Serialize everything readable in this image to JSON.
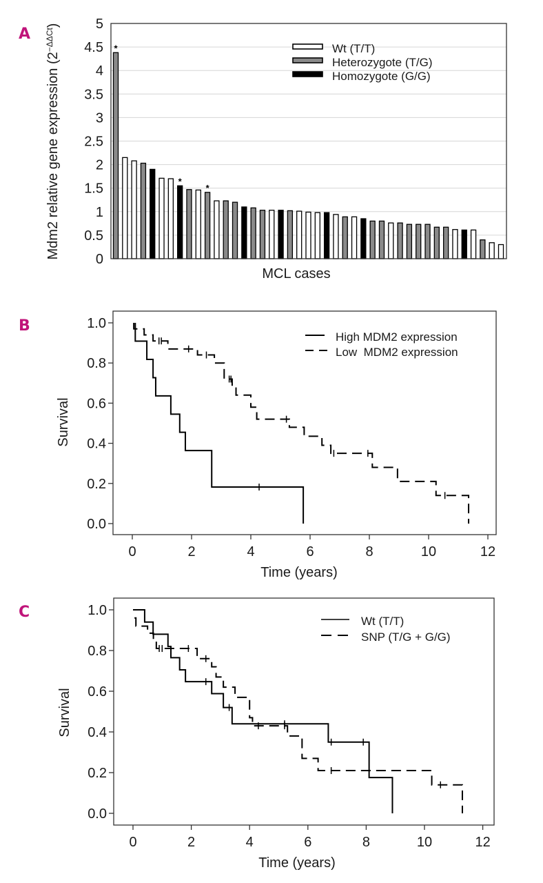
{
  "chart_data": [
    {
      "panel": "A",
      "type": "bar",
      "xlabel": "MCL cases",
      "ylabel": "Mdm2 relative gene expression (2",
      "ylabel_sup": "−ΔΔCt",
      "ylabel_close": ")",
      "ylim": [
        0,
        5
      ],
      "yticks": [
        "0",
        "0.5",
        "1",
        "1.5",
        "2",
        "2.5",
        "3",
        "3.5",
        "4",
        "4.5",
        "5"
      ],
      "grid": true,
      "legend_position": "top-right",
      "legend": [
        {
          "key": "wt",
          "label": "Wt (T/T)",
          "fill": "#ffffff"
        },
        {
          "key": "het",
          "label": "Heterozygote (T/G)",
          "fill": "#8a8a8a"
        },
        {
          "key": "hom",
          "label": "Homozygote (G/G)",
          "fill": "#000000"
        }
      ],
      "annotation_marker": "*",
      "bars": [
        {
          "genotype": "het",
          "value": 4.38,
          "star": true
        },
        {
          "genotype": "wt",
          "value": 2.15
        },
        {
          "genotype": "wt",
          "value": 2.08
        },
        {
          "genotype": "het",
          "value": 2.03
        },
        {
          "genotype": "hom",
          "value": 1.9
        },
        {
          "genotype": "wt",
          "value": 1.71
        },
        {
          "genotype": "wt",
          "value": 1.7
        },
        {
          "genotype": "hom",
          "value": 1.55,
          "star": true
        },
        {
          "genotype": "het",
          "value": 1.47
        },
        {
          "genotype": "wt",
          "value": 1.46
        },
        {
          "genotype": "het",
          "value": 1.41,
          "star": true
        },
        {
          "genotype": "wt",
          "value": 1.23
        },
        {
          "genotype": "het",
          "value": 1.23
        },
        {
          "genotype": "het",
          "value": 1.2
        },
        {
          "genotype": "hom",
          "value": 1.1
        },
        {
          "genotype": "het",
          "value": 1.08
        },
        {
          "genotype": "het",
          "value": 1.03
        },
        {
          "genotype": "wt",
          "value": 1.03
        },
        {
          "genotype": "hom",
          "value": 1.03
        },
        {
          "genotype": "het",
          "value": 1.02
        },
        {
          "genotype": "wt",
          "value": 1.01
        },
        {
          "genotype": "wt",
          "value": 0.99
        },
        {
          "genotype": "wt",
          "value": 0.98
        },
        {
          "genotype": "hom",
          "value": 0.98
        },
        {
          "genotype": "wt",
          "value": 0.94
        },
        {
          "genotype": "het",
          "value": 0.89
        },
        {
          "genotype": "wt",
          "value": 0.89
        },
        {
          "genotype": "hom",
          "value": 0.85
        },
        {
          "genotype": "het",
          "value": 0.8
        },
        {
          "genotype": "het",
          "value": 0.8
        },
        {
          "genotype": "wt",
          "value": 0.76
        },
        {
          "genotype": "het",
          "value": 0.76
        },
        {
          "genotype": "het",
          "value": 0.73
        },
        {
          "genotype": "het",
          "value": 0.73
        },
        {
          "genotype": "het",
          "value": 0.73
        },
        {
          "genotype": "het",
          "value": 0.67
        },
        {
          "genotype": "het",
          "value": 0.67
        },
        {
          "genotype": "wt",
          "value": 0.62
        },
        {
          "genotype": "hom",
          "value": 0.61
        },
        {
          "genotype": "wt",
          "value": 0.61
        },
        {
          "genotype": "het",
          "value": 0.4
        },
        {
          "genotype": "wt",
          "value": 0.34
        },
        {
          "genotype": "wt",
          "value": 0.3
        }
      ]
    },
    {
      "panel": "B",
      "type": "line",
      "subtype": "kaplan-meier",
      "xlabel": "Time (years)",
      "ylabel": "Survival",
      "xlim": [
        -0.6,
        12.6
      ],
      "ylim": [
        -0.06,
        1.06
      ],
      "xticks": [
        "0",
        "2",
        "4",
        "6",
        "8",
        "10",
        "12"
      ],
      "yticks": [
        "0.0",
        "0.2",
        "0.4",
        "0.6",
        "0.8",
        "1.0"
      ],
      "grid": false,
      "legend_position": "top-right",
      "series": [
        {
          "name": "High MDM2 expression",
          "style": "solid",
          "steps": [
            [
              0.1,
              1.0
            ],
            [
              0.1,
              0.909
            ],
            [
              0.49,
              0.818
            ],
            [
              0.7,
              0.727
            ],
            [
              0.79,
              0.636
            ],
            [
              1.3,
              0.545
            ],
            [
              1.6,
              0.455
            ],
            [
              1.79,
              0.364
            ],
            [
              2.68,
              0.182
            ],
            [
              5.77,
              0.0
            ]
          ],
          "censored": [
            [
              4.28,
              0.182
            ]
          ]
        },
        {
          "name": "Low  MDM2 expression",
          "style": "dashed",
          "steps": [
            [
              0.05,
              1.0
            ],
            [
              0.05,
              0.97
            ],
            [
              0.4,
              0.94
            ],
            [
              0.7,
              0.91
            ],
            [
              1.2,
              0.87
            ],
            [
              2.2,
              0.84
            ],
            [
              2.77,
              0.8
            ],
            [
              3.1,
              0.72
            ],
            [
              3.37,
              0.69
            ],
            [
              3.5,
              0.64
            ],
            [
              4.0,
              0.58
            ],
            [
              4.2,
              0.52
            ],
            [
              5.3,
              0.48
            ],
            [
              5.8,
              0.435
            ],
            [
              6.4,
              0.39
            ],
            [
              6.7,
              0.35
            ],
            [
              8.1,
              0.28
            ],
            [
              8.95,
              0.21
            ],
            [
              10.25,
              0.14
            ],
            [
              11.35,
              0.0
            ]
          ],
          "censored": [
            [
              0.9,
              0.91
            ],
            [
              0.98,
              0.91
            ],
            [
              1.9,
              0.87
            ],
            [
              2.5,
              0.84
            ],
            [
              3.27,
              0.72
            ],
            [
              3.33,
              0.72
            ],
            [
              5.2,
              0.52
            ],
            [
              6.8,
              0.35
            ],
            [
              7.95,
              0.35
            ],
            [
              10.55,
              0.14
            ]
          ]
        }
      ]
    },
    {
      "panel": "C",
      "type": "line",
      "subtype": "kaplan-meier",
      "xlabel": "Time (years)",
      "ylabel": "Survival",
      "xlim": [
        -0.6,
        12.6
      ],
      "ylim": [
        -0.06,
        1.06
      ],
      "xticks": [
        "0",
        "2",
        "4",
        "6",
        "8",
        "10",
        "12"
      ],
      "yticks": [
        "0.0",
        "0.2",
        "0.4",
        "0.6",
        "0.8",
        "1.0"
      ],
      "grid": false,
      "legend_position": "top-right",
      "series": [
        {
          "name": "Wt (T/T)",
          "style": "solid",
          "steps": [
            [
              0.0,
              1.0
            ],
            [
              0.4,
              0.94
            ],
            [
              0.69,
              0.88
            ],
            [
              1.2,
              0.82
            ],
            [
              1.3,
              0.765
            ],
            [
              1.6,
              0.705
            ],
            [
              1.8,
              0.647
            ],
            [
              2.7,
              0.588
            ],
            [
              3.1,
              0.52
            ],
            [
              3.4,
              0.44
            ],
            [
              6.7,
              0.35
            ],
            [
              8.1,
              0.176
            ],
            [
              8.9,
              0.0
            ]
          ],
          "censored": [
            [
              2.5,
              0.647
            ],
            [
              3.3,
              0.52
            ],
            [
              5.2,
              0.44
            ],
            [
              6.8,
              0.35
            ],
            [
              7.9,
              0.35
            ]
          ]
        },
        {
          "name": "SNP (T/G + G/G)",
          "style": "dashed",
          "steps": [
            [
              0.05,
              0.96
            ],
            [
              0.1,
              0.92
            ],
            [
              0.5,
              0.885
            ],
            [
              0.7,
              0.845
            ],
            [
              0.8,
              0.81
            ],
            [
              2.2,
              0.76
            ],
            [
              2.7,
              0.72
            ],
            [
              2.85,
              0.67
            ],
            [
              3.1,
              0.62
            ],
            [
              3.5,
              0.57
            ],
            [
              4.0,
              0.47
            ],
            [
              4.1,
              0.43
            ],
            [
              5.3,
              0.38
            ],
            [
              5.8,
              0.27
            ],
            [
              6.35,
              0.21
            ],
            [
              10.25,
              0.14
            ],
            [
              11.3,
              0.0
            ]
          ],
          "censored": [
            [
              0.9,
              0.81
            ],
            [
              1.0,
              0.81
            ],
            [
              1.9,
              0.81
            ],
            [
              2.5,
              0.76
            ],
            [
              4.3,
              0.43
            ],
            [
              5.2,
              0.43
            ],
            [
              6.8,
              0.21
            ],
            [
              10.55,
              0.14
            ]
          ]
        }
      ]
    }
  ]
}
